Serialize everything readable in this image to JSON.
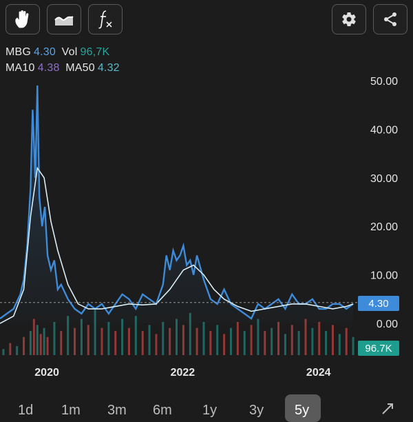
{
  "toolbar": {
    "left_buttons": [
      {
        "icon": "hand-icon"
      },
      {
        "icon": "area-chart-icon"
      },
      {
        "icon": "function-icon"
      }
    ],
    "right_buttons": [
      {
        "icon": "gear-icon"
      },
      {
        "icon": "share-icon"
      }
    ]
  },
  "legend": {
    "symbol": "MBG",
    "price": "4.30",
    "vol_label": "Vol",
    "vol_value": "96,7K",
    "ma10_label": "MA10",
    "ma10_value": "4.38",
    "ma50_label": "MA50",
    "ma50_value": "4.32"
  },
  "colors": {
    "price_line": "#3d8bd9",
    "ma_line": "#d9eef7",
    "ma10": "#8f6fc7",
    "ma50": "#5eb8c9",
    "vol": "#26a69a",
    "price_tag": "#3d8bd9",
    "vol_tag": "#1e9c8d",
    "vol_up": "#26a69a",
    "vol_down": "#ef5350"
  },
  "price_tag": "4.30",
  "vol_tag": "96.7K",
  "range_buttons": [
    "1d",
    "1m",
    "3m",
    "6m",
    "1y",
    "3y",
    "5y"
  ],
  "active_range": "5y",
  "expand_icon": "expand-icon",
  "chart_data": {
    "type": "line",
    "y_ticks": [
      "50.00",
      "40.00",
      "30.00",
      "20.00",
      "10.00",
      "0.00"
    ],
    "ylim": [
      0,
      55
    ],
    "x_ticks": [
      "2020",
      "2022",
      "2024"
    ],
    "xlim": [
      2019.3,
      2024.55
    ],
    "series": [
      {
        "x": [
          2019.3,
          2019.4,
          2019.5,
          2019.6,
          2019.65,
          2019.7,
          2019.75,
          2019.78,
          2019.82,
          2019.85,
          2019.88,
          2019.92,
          2019.96,
          2020.0,
          2020.05,
          2020.1,
          2020.15,
          2020.2,
          2020.3,
          2020.4,
          2020.5,
          2020.6,
          2020.7,
          2020.8,
          2020.9,
          2021.0,
          2021.1,
          2021.2,
          2021.3,
          2021.4,
          2021.5,
          2021.6,
          2021.7,
          2021.75,
          2021.8,
          2021.85,
          2021.9,
          2021.95,
          2022.0,
          2022.05,
          2022.1,
          2022.15,
          2022.2,
          2022.3,
          2022.4,
          2022.5,
          2022.6,
          2022.7,
          2022.8,
          2022.9,
          2023.0,
          2023.1,
          2023.2,
          2023.3,
          2023.4,
          2023.5,
          2023.6,
          2023.7,
          2023.8,
          2023.9,
          2024.0,
          2024.1,
          2024.2,
          2024.3,
          2024.4,
          2024.5
        ],
        "y": [
          1,
          2,
          3,
          6,
          9,
          16,
          28,
          44,
          30,
          49,
          26,
          20,
          24,
          14,
          11,
          13,
          7,
          8,
          5,
          3,
          2,
          4,
          3,
          4,
          2,
          4,
          6,
          5,
          3,
          6,
          5,
          4,
          8,
          14,
          11,
          15,
          13,
          14,
          16,
          12,
          13,
          10,
          14,
          9,
          5,
          4,
          7,
          4,
          3,
          2,
          1,
          4,
          3,
          4,
          5,
          3,
          6,
          4,
          4,
          5,
          3,
          3,
          4,
          4,
          3,
          4
        ]
      },
      {
        "x": [
          2019.3,
          2019.5,
          2019.65,
          2019.75,
          2019.85,
          2019.95,
          2020.05,
          2020.15,
          2020.3,
          2020.45,
          2020.6,
          2020.8,
          2021.0,
          2021.2,
          2021.4,
          2021.6,
          2021.8,
          2022.0,
          2022.15,
          2022.3,
          2022.45,
          2022.6,
          2022.8,
          2023.0,
          2023.2,
          2023.4,
          2023.6,
          2023.8,
          2024.0,
          2024.2,
          2024.4,
          2024.5
        ],
        "y": [
          0,
          1.5,
          7,
          22,
          32,
          30,
          21,
          15,
          8,
          4,
          3,
          3,
          3.5,
          4,
          3.8,
          4,
          7,
          11,
          12,
          10,
          7,
          5,
          3.5,
          2.5,
          3,
          3.5,
          4,
          4,
          3.5,
          3,
          3.5,
          4
        ]
      }
    ],
    "volume": [
      {
        "x": 2019.35,
        "v": 2
      },
      {
        "x": 2019.45,
        "v": 4
      },
      {
        "x": 2019.55,
        "v": 3
      },
      {
        "x": 2019.65,
        "v": 6
      },
      {
        "x": 2019.75,
        "v": 8
      },
      {
        "x": 2019.8,
        "v": 12
      },
      {
        "x": 2019.85,
        "v": 10
      },
      {
        "x": 2019.9,
        "v": 7
      },
      {
        "x": 2019.95,
        "v": 9
      },
      {
        "x": 2020.0,
        "v": 6
      },
      {
        "x": 2020.1,
        "v": 11
      },
      {
        "x": 2020.2,
        "v": 8
      },
      {
        "x": 2020.3,
        "v": 13
      },
      {
        "x": 2020.4,
        "v": 9
      },
      {
        "x": 2020.5,
        "v": 12
      },
      {
        "x": 2020.6,
        "v": 10
      },
      {
        "x": 2020.7,
        "v": 15
      },
      {
        "x": 2020.8,
        "v": 9
      },
      {
        "x": 2020.9,
        "v": 11
      },
      {
        "x": 2021.0,
        "v": 8
      },
      {
        "x": 2021.1,
        "v": 12
      },
      {
        "x": 2021.2,
        "v": 9
      },
      {
        "x": 2021.3,
        "v": 13
      },
      {
        "x": 2021.4,
        "v": 8
      },
      {
        "x": 2021.5,
        "v": 10
      },
      {
        "x": 2021.6,
        "v": 7
      },
      {
        "x": 2021.7,
        "v": 11
      },
      {
        "x": 2021.8,
        "v": 9
      },
      {
        "x": 2021.9,
        "v": 12
      },
      {
        "x": 2022.0,
        "v": 10
      },
      {
        "x": 2022.1,
        "v": 14
      },
      {
        "x": 2022.2,
        "v": 9
      },
      {
        "x": 2022.3,
        "v": 11
      },
      {
        "x": 2022.4,
        "v": 8
      },
      {
        "x": 2022.5,
        "v": 10
      },
      {
        "x": 2022.6,
        "v": 7
      },
      {
        "x": 2022.7,
        "v": 9
      },
      {
        "x": 2022.8,
        "v": 11
      },
      {
        "x": 2022.9,
        "v": 8
      },
      {
        "x": 2023.0,
        "v": 10
      },
      {
        "x": 2023.1,
        "v": 12
      },
      {
        "x": 2023.2,
        "v": 8
      },
      {
        "x": 2023.3,
        "v": 9
      },
      {
        "x": 2023.4,
        "v": 11
      },
      {
        "x": 2023.5,
        "v": 7
      },
      {
        "x": 2023.6,
        "v": 10
      },
      {
        "x": 2023.7,
        "v": 8
      },
      {
        "x": 2023.8,
        "v": 12
      },
      {
        "x": 2023.9,
        "v": 9
      },
      {
        "x": 2024.0,
        "v": 11
      },
      {
        "x": 2024.1,
        "v": 8
      },
      {
        "x": 2024.2,
        "v": 10
      },
      {
        "x": 2024.3,
        "v": 7
      },
      {
        "x": 2024.4,
        "v": 9
      },
      {
        "x": 2024.5,
        "v": 6
      }
    ],
    "vol_max": 16
  }
}
